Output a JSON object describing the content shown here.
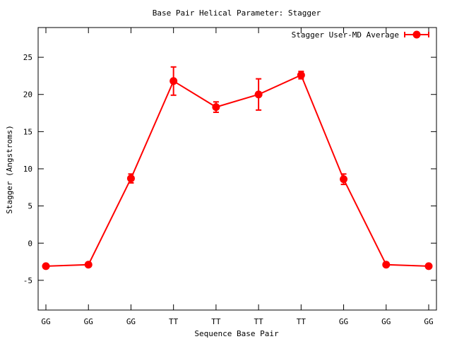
{
  "chart_data": {
    "type": "line",
    "title": "Base Pair Helical Parameter: Stagger",
    "xlabel": "Sequence Base Pair",
    "ylabel": "Stagger (Angstroms)",
    "categories": [
      "GG",
      "GG",
      "GG",
      "TT",
      "TT",
      "TT",
      "TT",
      "GG",
      "GG",
      "GG"
    ],
    "ylim": [
      -9,
      29
    ],
    "yticks": [
      -5,
      0,
      5,
      10,
      15,
      20,
      25
    ],
    "grid": false,
    "legend_position": "top-right",
    "series": [
      {
        "name": "Stagger User-MD Average",
        "color": "#ff0000",
        "values": [
          -3.1,
          -2.9,
          8.7,
          21.8,
          18.3,
          20.0,
          22.6,
          8.6,
          -2.9,
          -3.1
        ],
        "errors": [
          0.2,
          0.2,
          0.6,
          1.9,
          0.7,
          2.1,
          0.5,
          0.7,
          0.2,
          0.2
        ]
      }
    ]
  }
}
